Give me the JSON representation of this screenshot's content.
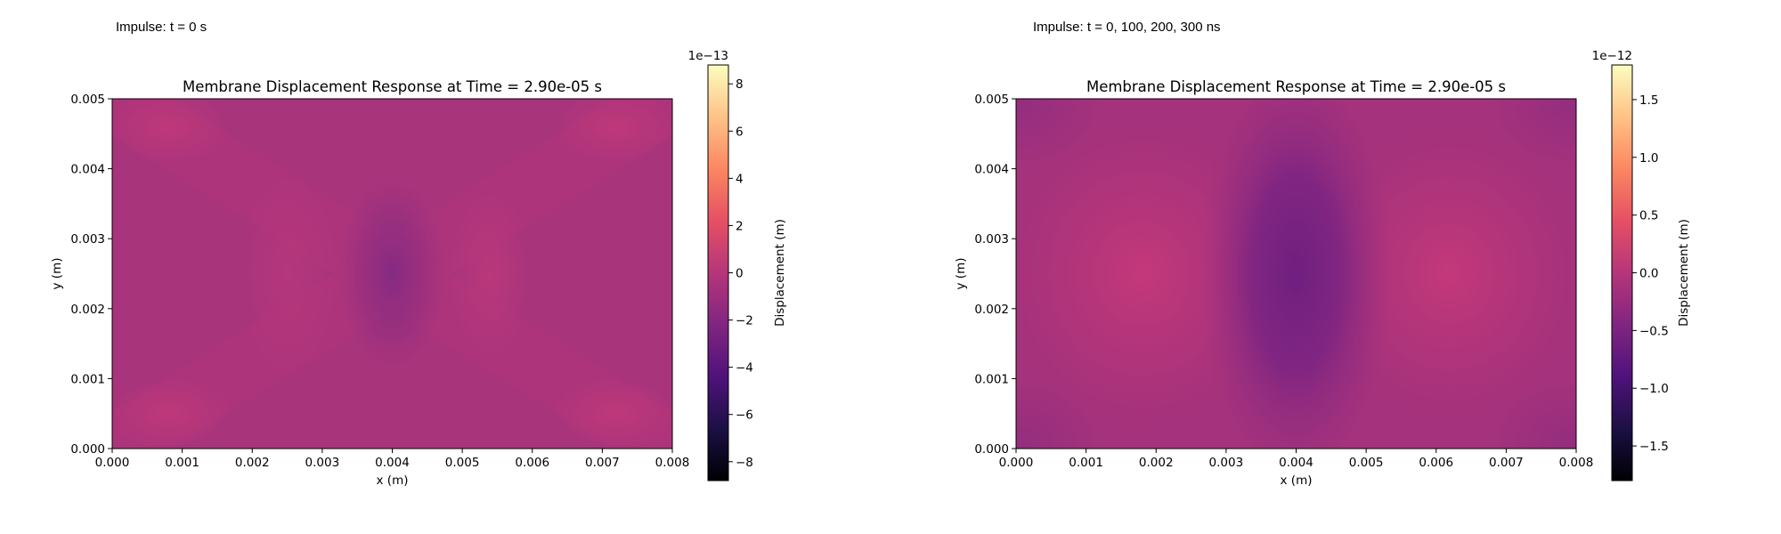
{
  "panels": [
    {
      "caption": "Impulse: t = 0 s",
      "chart_data": {
        "type": "heatmap",
        "title": "Membrane Displacement Response at Time = 2.90e-05 s",
        "xlabel": "x (m)",
        "ylabel": "y (m)",
        "xlim": [
          0.0,
          0.008
        ],
        "ylim": [
          0.0,
          0.005
        ],
        "x_ticks": [
          "0.000",
          "0.001",
          "0.002",
          "0.003",
          "0.004",
          "0.005",
          "0.006",
          "0.007",
          "0.008"
        ],
        "y_ticks": [
          "0.000",
          "0.001",
          "0.002",
          "0.003",
          "0.004",
          "0.005"
        ],
        "colormap": "magma",
        "colorbar": {
          "label": "Displacement (m)",
          "offset_text": "1e−13",
          "range": [
            -8.8,
            8.8
          ],
          "ticks": [
            "8",
            "6",
            "4",
            "2",
            "0",
            "−2",
            "−4",
            "−6",
            "−8"
          ]
        }
      }
    },
    {
      "caption": "Impulse: t = 0, 100, 200, 300 ns",
      "chart_data": {
        "type": "heatmap",
        "title": "Membrane Displacement Response at Time = 2.90e-05 s",
        "xlabel": "x (m)",
        "ylabel": "y (m)",
        "xlim": [
          0.0,
          0.008
        ],
        "ylim": [
          0.0,
          0.005
        ],
        "x_ticks": [
          "0.000",
          "0.001",
          "0.002",
          "0.003",
          "0.004",
          "0.005",
          "0.006",
          "0.007",
          "0.008"
        ],
        "y_ticks": [
          "0.000",
          "0.001",
          "0.002",
          "0.003",
          "0.004",
          "0.005"
        ],
        "colormap": "magma",
        "colorbar": {
          "label": "Displacement (m)",
          "offset_text": "1e−12",
          "range": [
            -1.8,
            1.8
          ],
          "ticks": [
            "1.5",
            "1.0",
            "0.5",
            "0.0",
            "−0.5",
            "−1.0",
            "−1.5"
          ]
        }
      }
    }
  ]
}
